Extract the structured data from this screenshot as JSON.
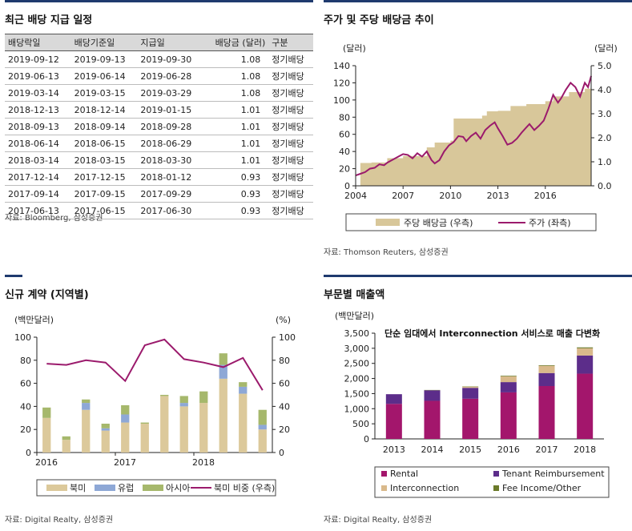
{
  "panels": {
    "dividend_table": {
      "title": "최근 배당 지급 일정",
      "columns": [
        "배당락일",
        "배당기준일",
        "지급일",
        "배당금 (달러)",
        "구분"
      ],
      "rows": [
        [
          "2019-09-12",
          "2019-09-13",
          "2019-09-30",
          "1.08",
          "정기배당"
        ],
        [
          "2019-06-13",
          "2019-06-14",
          "2019-06-28",
          "1.08",
          "정기배당"
        ],
        [
          "2019-03-14",
          "2019-03-15",
          "2019-03-29",
          "1.08",
          "정기배당"
        ],
        [
          "2018-12-13",
          "2018-12-14",
          "2019-01-15",
          "1.01",
          "정기배당"
        ],
        [
          "2018-09-13",
          "2018-09-14",
          "2018-09-28",
          "1.01",
          "정기배당"
        ],
        [
          "2018-06-14",
          "2018-06-15",
          "2018-06-29",
          "1.01",
          "정기배당"
        ],
        [
          "2018-03-14",
          "2018-03-15",
          "2018-03-30",
          "1.01",
          "정기배당"
        ],
        [
          "2017-12-14",
          "2017-12-15",
          "2018-01-12",
          "0.93",
          "정기배당"
        ],
        [
          "2017-09-14",
          "2017-09-15",
          "2017-09-29",
          "0.93",
          "정기배당"
        ],
        [
          "2017-06-13",
          "2017-06-15",
          "2017-06-30",
          "0.93",
          "정기배당"
        ]
      ],
      "source": "자료: Bloomberg, 삼성증권"
    },
    "price_dividend": {
      "title": "주가 및 주당 배당금 추이",
      "source": "자료: Thomson Reuters, 삼성증권"
    },
    "new_contracts": {
      "title": "신규 계약 (지역별)",
      "source": "자료: Digital Realty, 삼성증권"
    },
    "segment_revenue": {
      "title": "부문별 매출액",
      "source": "자료: Digital Realty, 삼성증권"
    }
  },
  "chart_data": [
    {
      "type": "area",
      "title": "주가 및 주당 배당금 추이",
      "ylabel_left": "(달러)",
      "ylabel_right": "(달러)",
      "x_ticks": [
        "2004",
        "2007",
        "2010",
        "2013",
        "2016"
      ],
      "xlim": [
        2004,
        2018.9
      ],
      "ylim_left": [
        0,
        140
      ],
      "yticks_left": [
        "0",
        "20",
        "40",
        "60",
        "80",
        "100",
        "120",
        "140"
      ],
      "ylim_right": [
        0,
        5
      ],
      "yticks_right": [
        "0.0",
        "1.0",
        "2.0",
        "3.0",
        "4.0",
        "5.0"
      ],
      "legend": [
        "주당 배당금 (우측)",
        "주가 (좌측)"
      ],
      "colors": {
        "dividend": "#d8c79a",
        "price": "#9b1a6c"
      },
      "dividend_steps": [
        [
          2004.0,
          0.0
        ],
        [
          2004.3,
          0.95
        ],
        [
          2005.0,
          0.97
        ],
        [
          2006.0,
          1.15
        ],
        [
          2007.0,
          1.24
        ],
        [
          2008.0,
          1.24
        ],
        [
          2008.5,
          1.6
        ],
        [
          2009.0,
          1.8
        ],
        [
          2010.0,
          1.88
        ],
        [
          2010.2,
          2.8
        ],
        [
          2011.0,
          2.8
        ],
        [
          2012.0,
          2.92
        ],
        [
          2012.3,
          3.1
        ],
        [
          2013.0,
          3.12
        ],
        [
          2013.8,
          3.32
        ],
        [
          2014.8,
          3.4
        ],
        [
          2015.8,
          3.4
        ],
        [
          2016.0,
          3.52
        ],
        [
          2016.5,
          3.72
        ],
        [
          2017.5,
          3.9
        ],
        [
          2018.5,
          4.04
        ],
        [
          2018.9,
          4.04
        ]
      ],
      "price": [
        [
          2004.0,
          12
        ],
        [
          2004.3,
          14
        ],
        [
          2004.6,
          16
        ],
        [
          2004.9,
          20
        ],
        [
          2005.2,
          21
        ],
        [
          2005.5,
          25
        ],
        [
          2005.8,
          24
        ],
        [
          2006.0,
          27
        ],
        [
          2006.4,
          31
        ],
        [
          2006.8,
          35
        ],
        [
          2007.0,
          37
        ],
        [
          2007.3,
          36
        ],
        [
          2007.6,
          32
        ],
        [
          2007.9,
          38
        ],
        [
          2008.2,
          34
        ],
        [
          2008.5,
          40
        ],
        [
          2008.8,
          30
        ],
        [
          2009.0,
          26
        ],
        [
          2009.3,
          30
        ],
        [
          2009.6,
          40
        ],
        [
          2009.9,
          47
        ],
        [
          2010.2,
          51
        ],
        [
          2010.5,
          58
        ],
        [
          2010.8,
          57
        ],
        [
          2011.0,
          52
        ],
        [
          2011.3,
          58
        ],
        [
          2011.6,
          62
        ],
        [
          2011.9,
          55
        ],
        [
          2012.2,
          65
        ],
        [
          2012.5,
          70
        ],
        [
          2012.8,
          74
        ],
        [
          2013.0,
          67
        ],
        [
          2013.3,
          58
        ],
        [
          2013.6,
          48
        ],
        [
          2013.9,
          50
        ],
        [
          2014.2,
          55
        ],
        [
          2014.5,
          62
        ],
        [
          2014.8,
          68
        ],
        [
          2015.0,
          72
        ],
        [
          2015.3,
          65
        ],
        [
          2015.6,
          70
        ],
        [
          2015.9,
          76
        ],
        [
          2016.2,
          90
        ],
        [
          2016.5,
          106
        ],
        [
          2016.8,
          97
        ],
        [
          2017.0,
          102
        ],
        [
          2017.3,
          112
        ],
        [
          2017.6,
          120
        ],
        [
          2017.9,
          115
        ],
        [
          2018.2,
          104
        ],
        [
          2018.5,
          120
        ],
        [
          2018.7,
          115
        ],
        [
          2018.9,
          128
        ]
      ]
    },
    {
      "type": "bar",
      "title": "신규 계약 (지역별)",
      "ylabel_left": "(백만달러)",
      "ylabel_right": "(%)",
      "ylim": [
        0,
        100
      ],
      "yticks": [
        "0",
        "20",
        "40",
        "60",
        "80",
        "100"
      ],
      "x_ticks": [
        "2016",
        "2017",
        "2018"
      ],
      "x_tick_quarters": [
        0,
        4,
        8
      ],
      "legend": [
        "북미",
        "유럽",
        "아시아",
        "북미 비중 (우측)"
      ],
      "colors": [
        "#dcc99b",
        "#8ea8d6",
        "#a6b86c",
        "#9b1a6c"
      ],
      "series": [
        {
          "name": "북미",
          "values": [
            30,
            11,
            37,
            19,
            26,
            25,
            49,
            40,
            43,
            64,
            51,
            20
          ]
        },
        {
          "name": "유럽",
          "values": [
            0,
            0,
            6,
            2,
            7,
            0,
            0,
            3,
            0,
            12,
            6,
            4
          ]
        },
        {
          "name": "아시아",
          "values": [
            9,
            3,
            3,
            4,
            8,
            1,
            1,
            6,
            10,
            10,
            4,
            13
          ]
        },
        {
          "name": "북미 비중 (우측)",
          "values": [
            77,
            76,
            80,
            78,
            62,
            93,
            98,
            81,
            78,
            74,
            82,
            54
          ]
        }
      ]
    },
    {
      "type": "bar",
      "title": "부문별 매출액",
      "subtitle": "단순 임대에서 Interconnection 서비스로 매출 다변화",
      "ylabel": "(백만달러)",
      "ylim": [
        0,
        3500
      ],
      "yticks": [
        "0",
        "500",
        "1,000",
        "1,500",
        "2,000",
        "2,500",
        "3,000",
        "3,500"
      ],
      "categories": [
        "2013",
        "2014",
        "2015",
        "2016",
        "2017",
        "2018"
      ],
      "colors": [
        "#a3166c",
        "#5c2d8a",
        "#d9b98b",
        "#6b7a2a"
      ],
      "series": [
        {
          "name": "Rental",
          "values": [
            1160,
            1260,
            1330,
            1540,
            1750,
            2160
          ]
        },
        {
          "name": "Tenant Reimbursement",
          "values": [
            320,
            350,
            360,
            340,
            430,
            600
          ]
        },
        {
          "name": "Interconnection",
          "values": [
            0,
            0,
            40,
            190,
            240,
            240
          ]
        },
        {
          "name": "Fee Income/Other",
          "values": [
            0,
            10,
            10,
            20,
            20,
            30
          ]
        }
      ]
    }
  ]
}
